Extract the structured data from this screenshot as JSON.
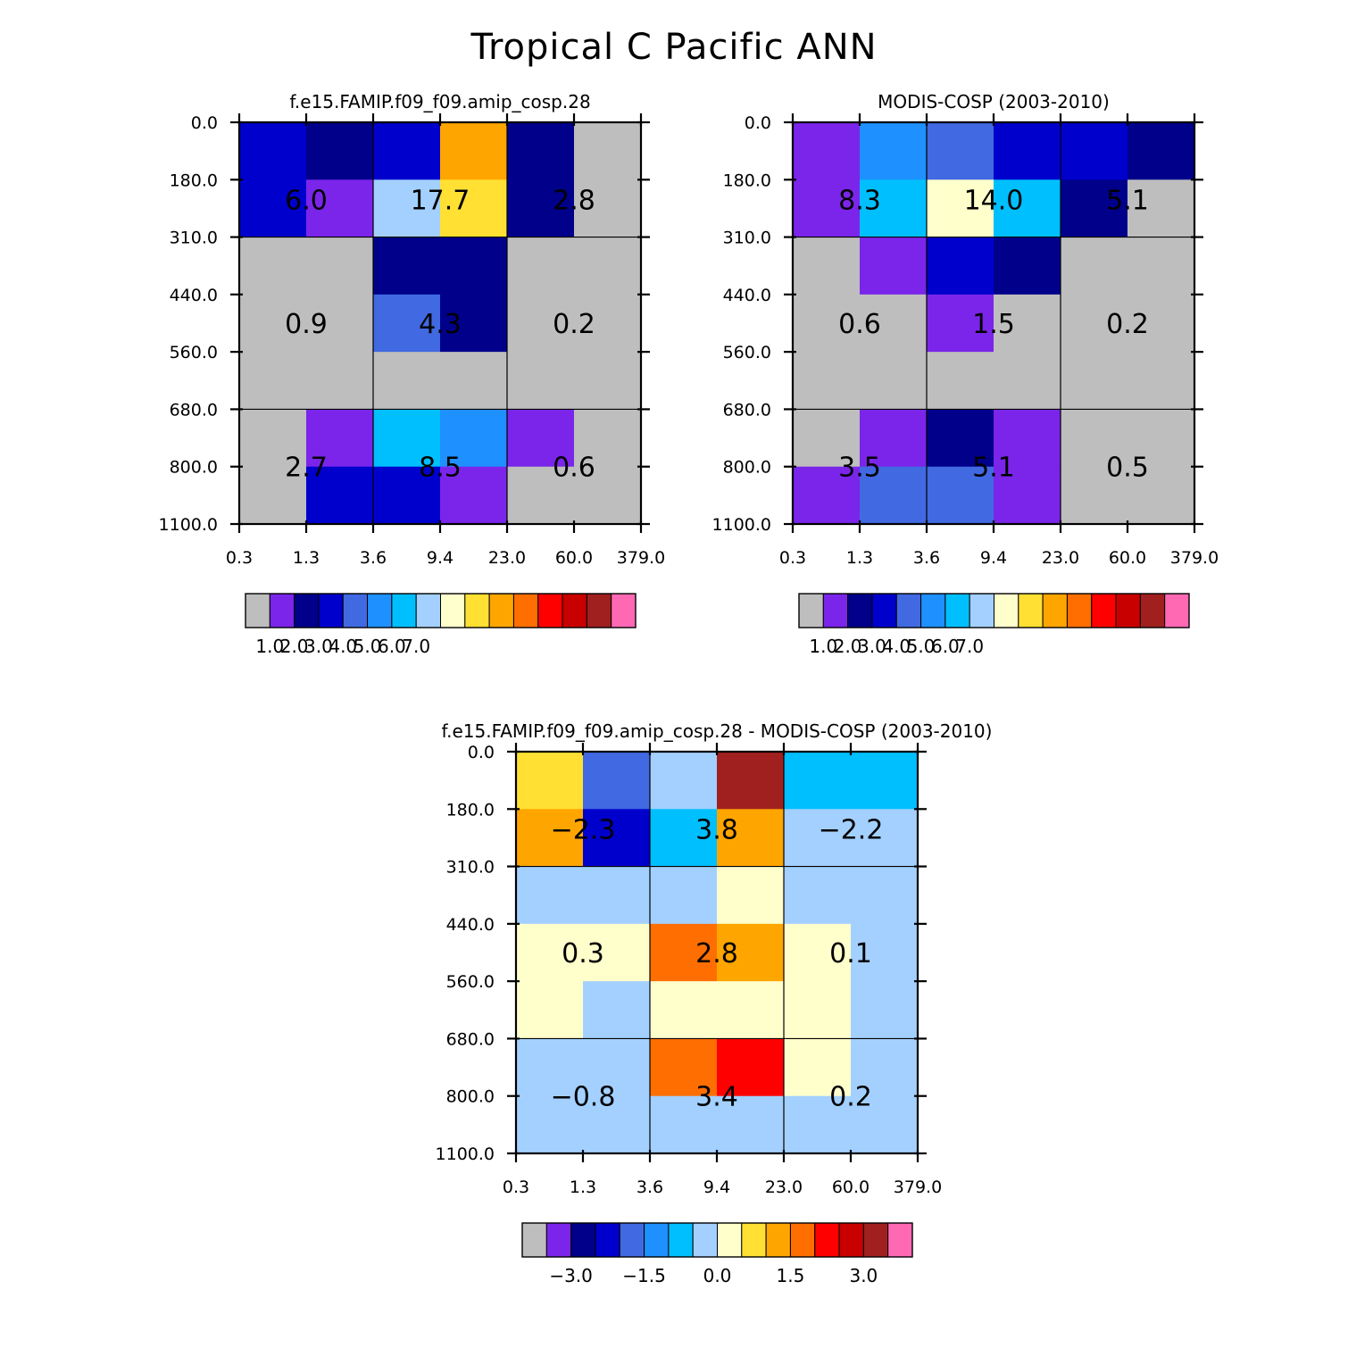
{
  "title": "Tropical C Pacific ANN",
  "colors": {
    "gray": "#bebebe",
    "palette": [
      "#bebebe",
      "#7b25ea",
      "#00008b",
      "#0000cd",
      "#4169e1",
      "#1e90ff",
      "#00bfff",
      "#a3d0ff",
      "#ffffcc",
      "#ffe033",
      "#ffa500",
      "#ff6e00",
      "#ff0000",
      "#c80000",
      "#a02020",
      "#ff69b4"
    ]
  },
  "chart_data": [
    {
      "type": "heatmap",
      "panel": "model",
      "title": "f.e15.FAMIP.f09_f09.amip_cosp.28",
      "xticks": [
        "0.3",
        "1.3",
        "3.6",
        "9.4",
        "23.0",
        "60.0",
        "379.0"
      ],
      "yticks": [
        "0.0",
        "180.0",
        "310.0",
        "440.0",
        "560.0",
        "680.0",
        "800.0",
        "1100.0"
      ],
      "grid": true,
      "cell_color_index": [
        [
          3,
          2,
          3,
          10,
          2,
          0
        ],
        [
          3,
          1,
          7,
          9,
          2,
          0
        ],
        [
          0,
          0,
          2,
          2,
          0,
          0
        ],
        [
          0,
          0,
          4,
          2,
          0,
          0
        ],
        [
          0,
          0,
          0,
          0,
          0,
          0
        ],
        [
          0,
          1,
          6,
          5,
          1,
          0
        ],
        [
          0,
          3,
          3,
          1,
          0,
          0
        ]
      ],
      "block_values": [
        [
          "6.0",
          "17.7",
          "2.8"
        ],
        [
          "0.9",
          "4.3",
          "0.2"
        ],
        [
          "2.7",
          "8.5",
          "0.6"
        ]
      ],
      "colorbar": {
        "labels": [
          "1.0",
          "2.0",
          "3.0",
          "4.0",
          "5.0",
          "6.0",
          "7.0"
        ]
      }
    },
    {
      "type": "heatmap",
      "panel": "obs",
      "title": "MODIS-COSP (2003-2010)",
      "xticks": [
        "0.3",
        "1.3",
        "3.6",
        "9.4",
        "23.0",
        "60.0",
        "379.0"
      ],
      "yticks": [
        "0.0",
        "180.0",
        "310.0",
        "440.0",
        "560.0",
        "680.0",
        "800.0",
        "1100.0"
      ],
      "grid": true,
      "cell_color_index": [
        [
          1,
          5,
          4,
          3,
          3,
          2
        ],
        [
          1,
          6,
          8,
          6,
          2,
          0
        ],
        [
          0,
          1,
          3,
          2,
          0,
          0
        ],
        [
          0,
          0,
          1,
          0,
          0,
          0
        ],
        [
          0,
          0,
          0,
          0,
          0,
          0
        ],
        [
          0,
          1,
          2,
          1,
          0,
          0
        ],
        [
          1,
          4,
          4,
          1,
          0,
          0
        ]
      ],
      "block_values": [
        [
          "8.3",
          "14.0",
          "5.1"
        ],
        [
          "0.6",
          "1.5",
          "0.2"
        ],
        [
          "3.5",
          "5.1",
          "0.5"
        ]
      ],
      "colorbar": {
        "labels": [
          "1.0",
          "2.0",
          "3.0",
          "4.0",
          "5.0",
          "6.0",
          "7.0"
        ]
      }
    },
    {
      "type": "heatmap",
      "panel": "difference",
      "title": "f.e15.FAMIP.f09_f09.amip_cosp.28 - MODIS-COSP (2003-2010)",
      "xticks": [
        "0.3",
        "1.3",
        "3.6",
        "9.4",
        "23.0",
        "60.0",
        "379.0"
      ],
      "yticks": [
        "0.0",
        "180.0",
        "310.0",
        "440.0",
        "560.0",
        "680.0",
        "800.0",
        "1100.0"
      ],
      "grid": true,
      "cell_color_index": [
        [
          9,
          4,
          7,
          14,
          6,
          6
        ],
        [
          10,
          3,
          6,
          10,
          7,
          7
        ],
        [
          7,
          7,
          7,
          8,
          7,
          7
        ],
        [
          8,
          8,
          11,
          10,
          8,
          7
        ],
        [
          8,
          7,
          8,
          8,
          8,
          7
        ],
        [
          7,
          7,
          11,
          12,
          8,
          7
        ],
        [
          7,
          7,
          7,
          7,
          7,
          7
        ]
      ],
      "block_values": [
        [
          "−2.3",
          "3.8",
          "−2.2"
        ],
        [
          "0.3",
          "2.8",
          "0.1"
        ],
        [
          "−0.8",
          "3.4",
          "0.2"
        ]
      ],
      "colorbar": {
        "labels": [
          "−3.0",
          "−1.5",
          "0.0",
          "1.5",
          "3.0"
        ]
      }
    }
  ]
}
